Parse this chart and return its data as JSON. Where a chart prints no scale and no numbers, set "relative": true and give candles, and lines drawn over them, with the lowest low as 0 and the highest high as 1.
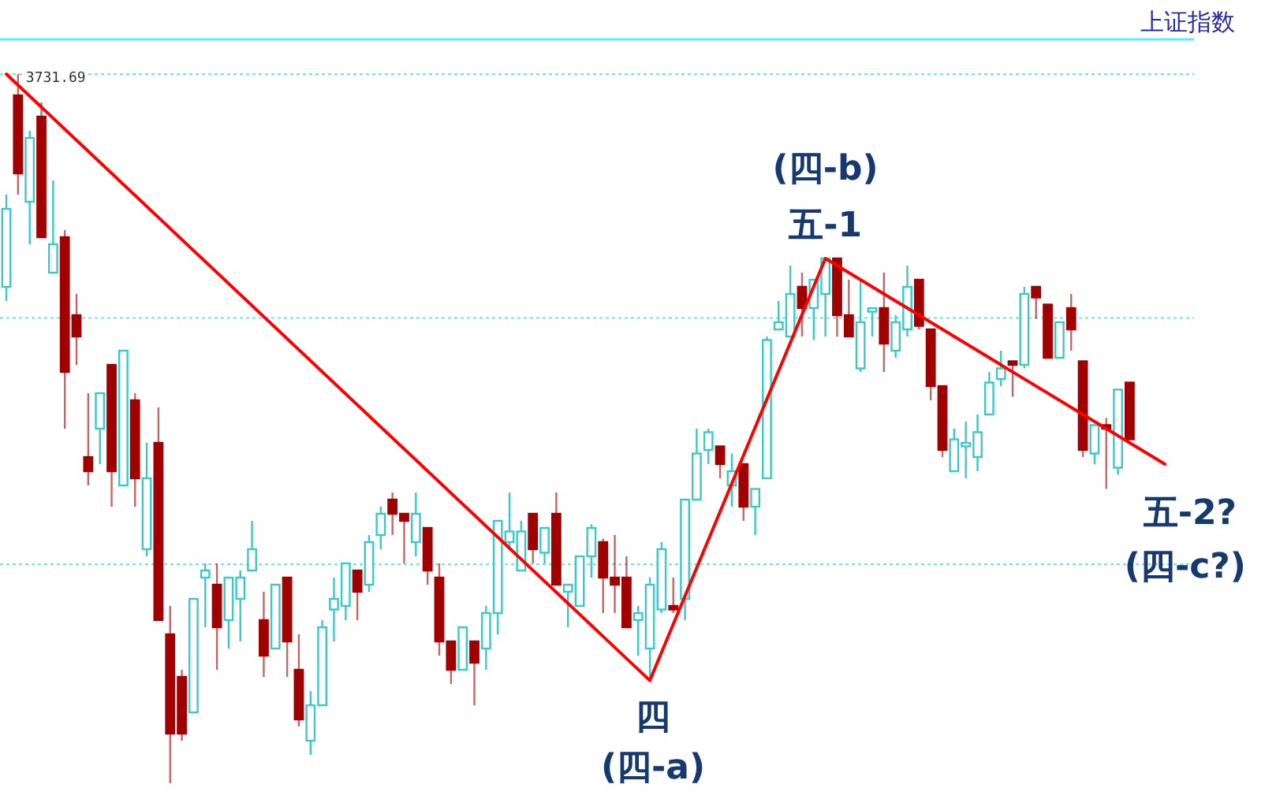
{
  "chart_data": {
    "type": "candlestick",
    "title": "上证指数",
    "relative": true,
    "categories": [
      null,
      null,
      null,
      null,
      null,
      null,
      null,
      null,
      null,
      null,
      null,
      null,
      null,
      null,
      null,
      null,
      null,
      null,
      null,
      null,
      null,
      null,
      null,
      null,
      null,
      null,
      null,
      null,
      null,
      null,
      null,
      null,
      null,
      null,
      null,
      null,
      null,
      null,
      null,
      null,
      null,
      null,
      null,
      null,
      null,
      null,
      null,
      null,
      null,
      null,
      null,
      null,
      null,
      null,
      null,
      null,
      null,
      null,
      null,
      null,
      null,
      null,
      null,
      null,
      null,
      null,
      null,
      null,
      null,
      null,
      null,
      null,
      null,
      null,
      null,
      null,
      null,
      null,
      null,
      null,
      null,
      null,
      null,
      null,
      null,
      null,
      null,
      null,
      null,
      null,
      null,
      null,
      null,
      null,
      null,
      null,
      null,
      null,
      null,
      null
    ],
    "ohlc": [
      [
        0.7,
        0.83,
        0.68,
        0.81
      ],
      [
        0.97,
        1.0,
        0.83,
        0.86
      ],
      [
        0.82,
        0.92,
        0.76,
        0.91
      ],
      [
        0.94,
        0.96,
        0.77,
        0.77
      ],
      [
        0.72,
        0.85,
        0.72,
        0.76
      ],
      [
        0.77,
        0.78,
        0.5,
        0.58
      ],
      [
        0.66,
        0.69,
        0.59,
        0.63
      ],
      [
        0.46,
        0.55,
        0.42,
        0.44
      ],
      [
        0.5,
        0.55,
        0.45,
        0.55
      ],
      [
        0.59,
        0.59,
        0.39,
        0.44
      ],
      [
        0.42,
        0.61,
        0.42,
        0.61
      ],
      [
        0.54,
        0.55,
        0.39,
        0.43
      ],
      [
        0.33,
        0.48,
        0.32,
        0.43
      ],
      [
        0.48,
        0.53,
        0.23,
        0.23
      ],
      [
        0.21,
        0.25,
        0,
        0.07
      ],
      [
        0.15,
        0.16,
        0.06,
        0.07
      ],
      [
        0.1,
        0.26,
        0.1,
        0.26
      ],
      [
        0.29,
        0.31,
        0.22,
        0.3
      ],
      [
        0.28,
        0.31,
        0.16,
        0.22
      ],
      [
        0.23,
        0.29,
        0.19,
        0.29
      ],
      [
        0.26,
        0.3,
        0.2,
        0.29
      ],
      [
        0.3,
        0.37,
        0.3,
        0.33
      ],
      [
        0.23,
        0.27,
        0.15,
        0.18
      ],
      [
        0.19,
        0.28,
        0.19,
        0.28
      ],
      [
        0.29,
        0.29,
        0.15,
        0.2
      ],
      [
        0.16,
        0.21,
        0.08,
        0.09
      ],
      [
        0.06,
        0.13,
        0.04,
        0.11
      ],
      [
        0.11,
        0.23,
        0.11,
        0.22
      ],
      [
        0.245,
        0.29,
        0.2,
        0.26
      ],
      [
        0.25,
        0.31,
        0.23,
        0.31
      ],
      [
        0.3,
        0.3,
        0.23,
        0.27
      ],
      [
        0.28,
        0.35,
        0.27,
        0.34
      ],
      [
        0.35,
        0.39,
        0.33,
        0.38
      ],
      [
        0.4,
        0.41,
        0.35,
        0.38
      ],
      [
        0.38,
        0.38,
        0.31,
        0.37
      ],
      [
        0.34,
        0.41,
        0.32,
        0.38
      ],
      [
        0.36,
        0.36,
        0.28,
        0.3
      ],
      [
        0.29,
        0.31,
        0.18,
        0.2
      ],
      [
        0.2,
        0.2,
        0.14,
        0.16
      ],
      [
        0.16,
        0.22,
        0.16,
        0.22
      ],
      [
        0.2,
        0.2,
        0.11,
        0.17
      ],
      [
        0.19,
        0.25,
        0.16,
        0.24
      ],
      [
        0.24,
        0.37,
        0.21,
        0.37
      ],
      [
        0.34,
        0.41,
        0.33,
        0.355
      ],
      [
        0.3,
        0.37,
        0.3,
        0.355
      ],
      [
        0.38,
        0.38,
        0.31,
        0.33
      ],
      [
        0.325,
        0.36,
        0.31,
        0.36
      ],
      [
        0.38,
        0.41,
        0.28,
        0.28
      ],
      [
        0.27,
        0.28,
        0.22,
        0.28
      ],
      [
        0.25,
        0.32,
        0.25,
        0.32
      ],
      [
        0.32,
        0.365,
        0.29,
        0.36
      ],
      [
        0.34,
        0.345,
        0.24,
        0.29
      ],
      [
        0.29,
        0.35,
        0.24,
        0.28
      ],
      [
        0.29,
        0.32,
        0.22,
        0.22
      ],
      [
        0.23,
        0.25,
        0.18,
        0.24
      ],
      [
        0.19,
        0.29,
        0.145,
        0.28
      ],
      [
        0.245,
        0.34,
        0.24,
        0.33
      ],
      [
        0.25,
        0.29,
        0.24,
        0.245
      ],
      [
        0.26,
        0.4,
        0.23,
        0.4
      ],
      [
        0.4,
        0.5,
        0.4,
        0.465
      ],
      [
        0.47,
        0.5,
        0.45,
        0.495
      ],
      [
        0.475,
        0.475,
        0.43,
        0.45
      ],
      [
        0.42,
        0.465,
        0.39,
        0.44
      ],
      [
        0.45,
        0.45,
        0.37,
        0.39
      ],
      [
        0.39,
        0.415,
        0.35,
        0.415
      ],
      [
        0.43,
        0.63,
        0.43,
        0.625
      ],
      [
        0.64,
        0.68,
        0.64,
        0.65
      ],
      [
        0.63,
        0.73,
        0.63,
        0.69
      ],
      [
        0.7,
        0.72,
        0.63,
        0.67
      ],
      [
        0.67,
        0.71,
        0.625,
        0.71
      ],
      [
        0.69,
        0.74,
        0.63,
        0.74
      ],
      [
        0.74,
        0.74,
        0.63,
        0.66
      ],
      [
        0.66,
        0.71,
        0.63,
        0.63
      ],
      [
        0.585,
        0.71,
        0.58,
        0.65
      ],
      [
        0.665,
        0.67,
        0.63,
        0.67
      ],
      [
        0.67,
        0.72,
        0.58,
        0.62
      ],
      [
        0.61,
        0.66,
        0.6,
        0.65
      ],
      [
        0.64,
        0.73,
        0.63,
        0.7
      ],
      [
        0.71,
        0.71,
        0.64,
        0.645
      ],
      [
        0.64,
        0.64,
        0.54,
        0.56
      ],
      [
        0.56,
        0.56,
        0.46,
        0.47
      ],
      [
        0.44,
        0.5,
        0.44,
        0.485
      ],
      [
        0.475,
        0.51,
        0.43,
        0.48
      ],
      [
        0.46,
        0.52,
        0.44,
        0.495
      ],
      [
        0.52,
        0.58,
        0.52,
        0.565
      ],
      [
        0.57,
        0.61,
        0.56,
        0.585
      ],
      [
        0.595,
        0.595,
        0.545,
        0.59
      ],
      [
        0.59,
        0.7,
        0.585,
        0.69
      ],
      [
        0.7,
        0.7,
        0.655,
        0.685
      ],
      [
        0.675,
        0.675,
        0.6,
        0.6
      ],
      [
        0.6,
        0.65,
        0.6,
        0.65
      ],
      [
        0.67,
        0.69,
        0.61,
        0.64
      ],
      [
        0.595,
        0.595,
        0.46,
        0.47
      ],
      [
        0.465,
        0.505,
        0.45,
        0.505
      ],
      [
        0.505,
        0.515,
        0.415,
        0.5
      ],
      [
        0.445,
        0.555,
        0.435,
        0.555
      ],
      [
        0.565,
        0.565,
        0.485,
        0.485
      ],
      null,
      null,
      null
    ],
    "colors": [
      "#3cc8c8",
      "#a00000",
      "#3cc8c8",
      "#a00000",
      "#3cc8c8",
      "#a00000",
      "#a00000",
      "#a00000",
      "#3cc8c8",
      "#a00000",
      "#3cc8c8",
      "#a00000",
      "#3cc8c8",
      "#a00000",
      "#a00000",
      "#a00000",
      "#3cc8c8",
      "#3cc8c8",
      "#a00000",
      "#3cc8c8",
      "#3cc8c8",
      "#3cc8c8",
      "#a00000",
      "#3cc8c8",
      "#a00000",
      "#a00000",
      "#3cc8c8",
      "#3cc8c8",
      "#3cc8c8",
      "#3cc8c8",
      "#a00000",
      "#3cc8c8",
      "#3cc8c8",
      "#a00000",
      "#a00000",
      "#3cc8c8",
      "#a00000",
      "#a00000",
      "#a00000",
      "#3cc8c8",
      "#a00000",
      "#3cc8c8",
      "#3cc8c8",
      "#3cc8c8",
      "#3cc8c8",
      "#a00000",
      "#3cc8c8",
      "#a00000",
      "#3cc8c8",
      "#3cc8c8",
      "#3cc8c8",
      "#a00000",
      "#a00000",
      "#a00000",
      "#3cc8c8",
      "#3cc8c8",
      "#3cc8c8",
      "#a00000",
      "#3cc8c8",
      "#3cc8c8",
      "#3cc8c8",
      "#a00000",
      "#3cc8c8",
      "#a00000",
      "#3cc8c8",
      "#3cc8c8",
      "#3cc8c8",
      "#3cc8c8",
      "#a00000",
      "#3cc8c8",
      "#3cc8c8",
      "#a00000",
      "#a00000",
      "#3cc8c8",
      "#3cc8c8",
      "#a00000",
      "#3cc8c8",
      "#3cc8c8",
      "#a00000",
      "#a00000",
      "#a00000",
      "#3cc8c8",
      "#3cc8c8",
      "#3cc8c8",
      "#3cc8c8",
      "#3cc8c8",
      "#a00000",
      "#3cc8c8",
      "#a00000",
      "#a00000",
      "#3cc8c8",
      "#a00000",
      "#a00000",
      "#3cc8c8",
      "#a00000",
      "#3cc8c8",
      "#a00000",
      null,
      null,
      null
    ],
    "series": [
      {
        "type": "line",
        "color": "#ff0000",
        "values": [
          1.0,
          null,
          null,
          null,
          null,
          null,
          null,
          null,
          null,
          null,
          null,
          null,
          null,
          null,
          null,
          null,
          null,
          null,
          null,
          null,
          null,
          null,
          null,
          null,
          null,
          null,
          null,
          null,
          null,
          null,
          null,
          null,
          null,
          null,
          null,
          null,
          null,
          null,
          null,
          null,
          null,
          null,
          null,
          null,
          null,
          null,
          null,
          null,
          null,
          null,
          null,
          null,
          null,
          null,
          null,
          0.145,
          null,
          null,
          null,
          null,
          null,
          null,
          null,
          null,
          null,
          null,
          null,
          null,
          null,
          null,
          0.74,
          null,
          null,
          null,
          null,
          null,
          null,
          null,
          null,
          null,
          null,
          null,
          null,
          null,
          null,
          null,
          null,
          null,
          null,
          null,
          null,
          null,
          null,
          null,
          null,
          null,
          null,
          null,
          null,
          0.45
        ]
      }
    ],
    "ref_lines": [
      {
        "axis": "y",
        "value": 1.0,
        "color": "#66e8f8",
        "line_style": "dotted"
      },
      {
        "axis": "y",
        "value": 0.656,
        "color": "#66e8f8",
        "line_style": "dotted"
      },
      {
        "axis": "y",
        "value": 0.309,
        "color": "#66e8f8",
        "line_style": "dotted"
      }
    ],
    "annotations": [
      "3731.69",
      "四",
      "(四-a)",
      "(四-b)",
      "五-1",
      "五-2?",
      "(四-c?)"
    ]
  }
}
